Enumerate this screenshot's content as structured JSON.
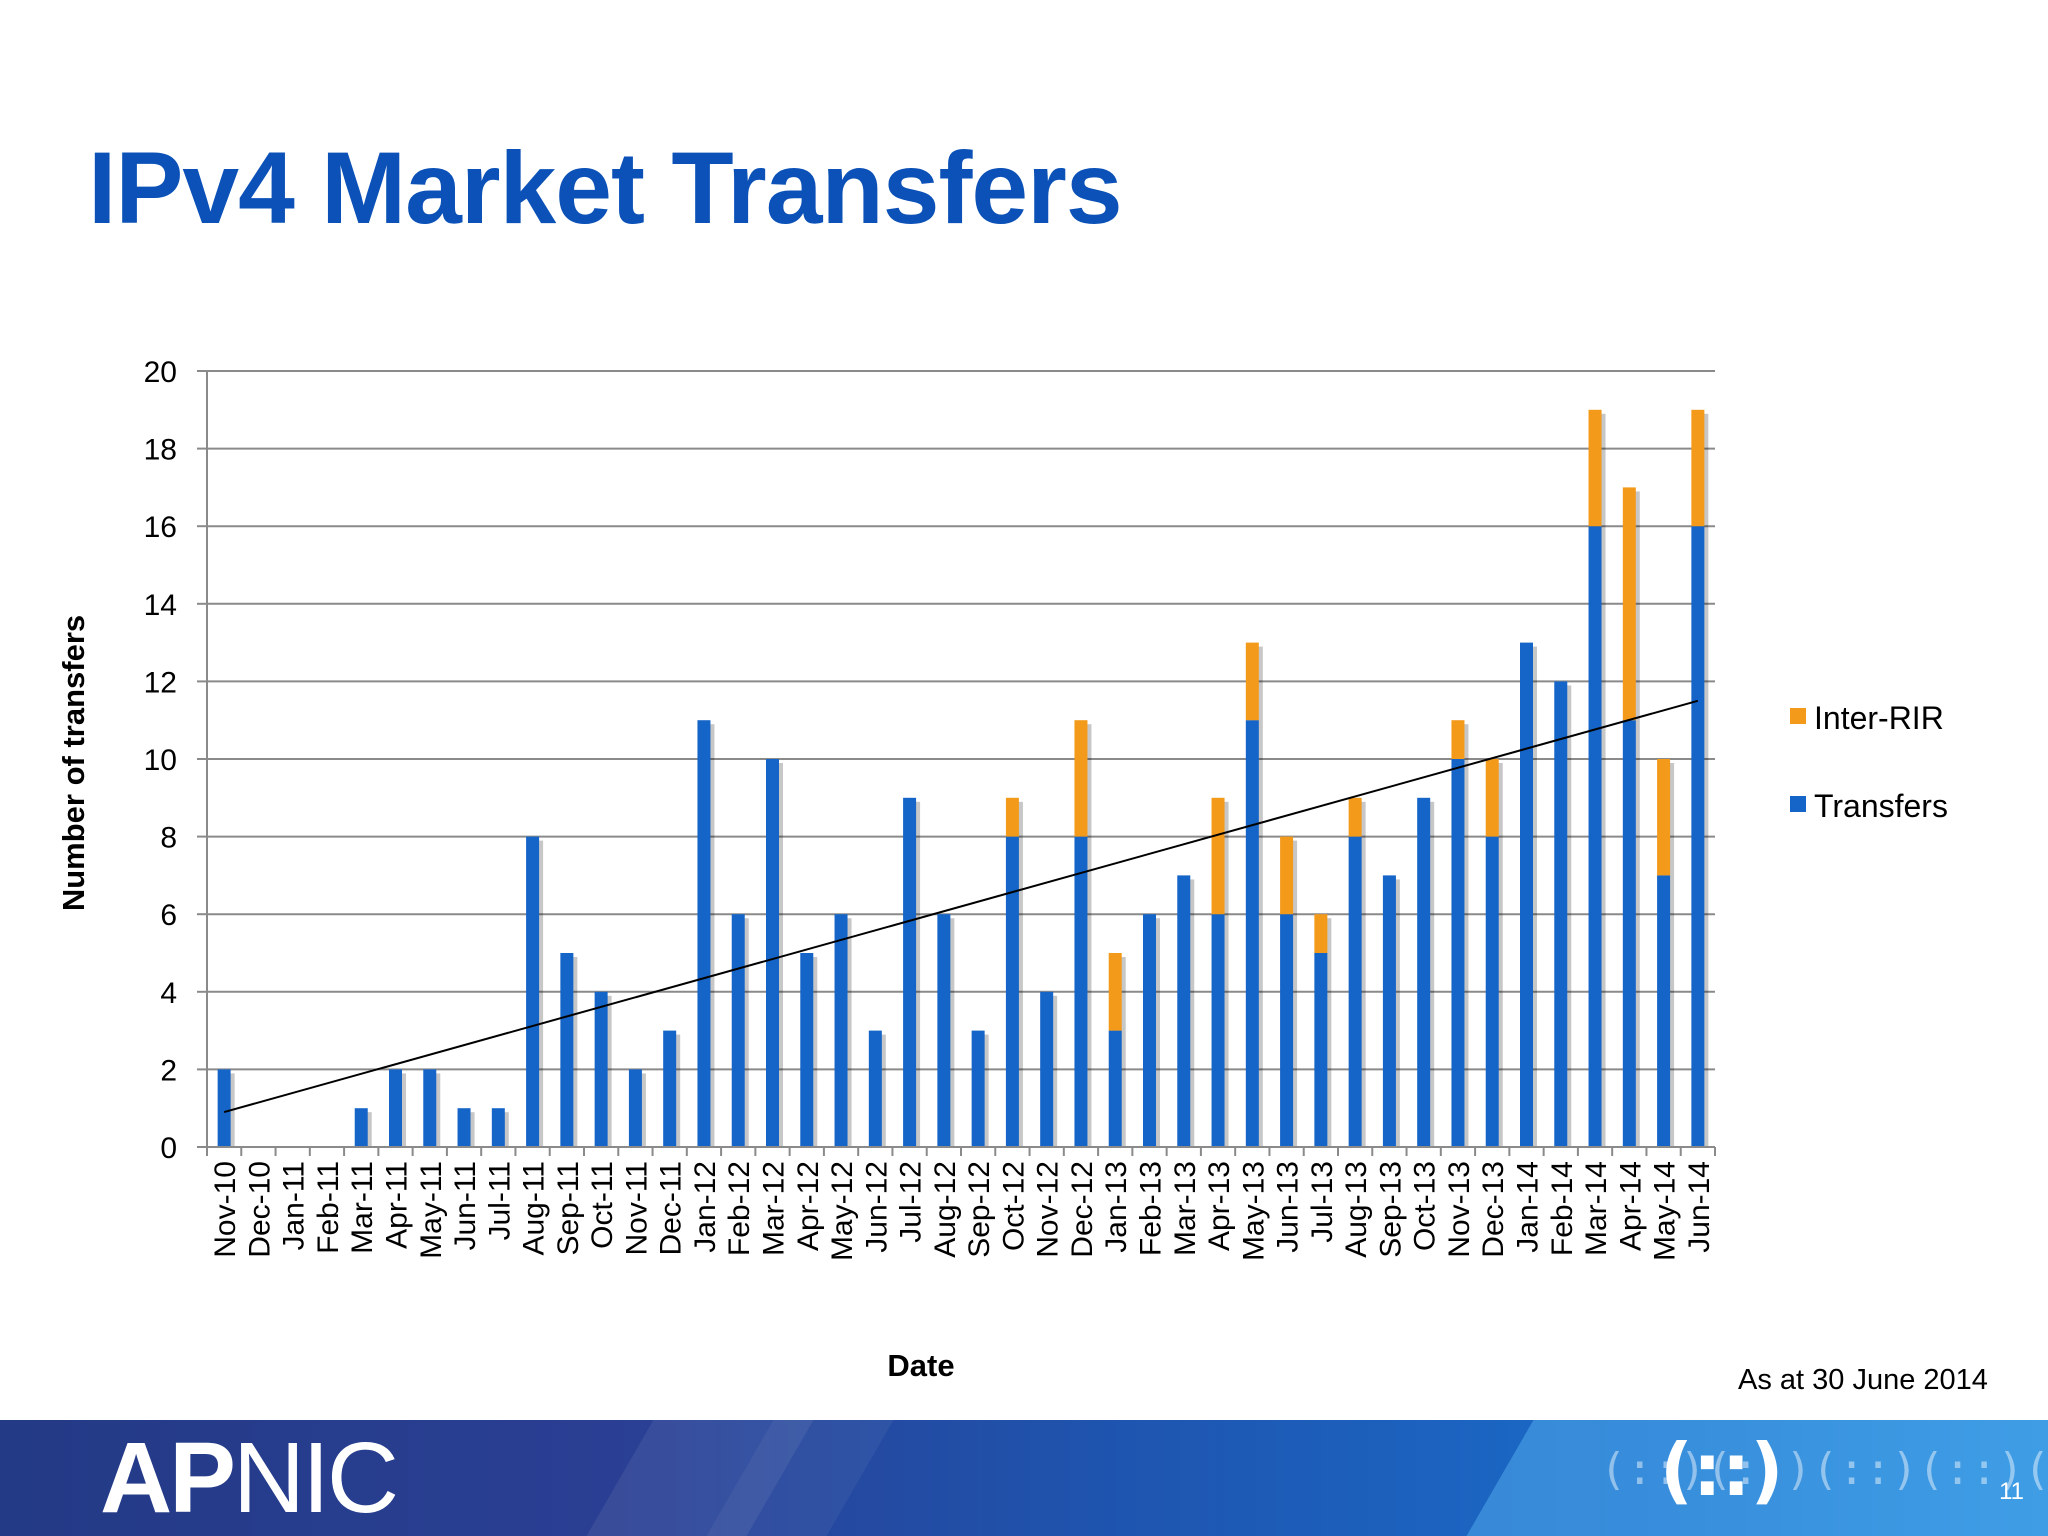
{
  "slide": {
    "title": "IPv4 Market Transfers",
    "note": "As at 30 June 2014",
    "page_number": "11",
    "logo_text_bold": "AP",
    "logo_text_thin": "NIC"
  },
  "colors": {
    "title": "#0b51b7",
    "transfers": "#1565c8",
    "inter_rir": "#f39a1b",
    "trendline": "#000000",
    "grid": "#8a8a8a"
  },
  "chart_data": {
    "type": "bar",
    "stacked": true,
    "xlabel": "Date",
    "ylabel": "Number of transfers",
    "ylim": [
      0,
      20
    ],
    "yticks": [
      0,
      2,
      4,
      6,
      8,
      10,
      12,
      14,
      16,
      18,
      20
    ],
    "grid": true,
    "legend_position": "right",
    "categories": [
      "Nov-10",
      "Dec-10",
      "Jan-11",
      "Feb-11",
      "Mar-11",
      "Apr-11",
      "May-11",
      "Jun-11",
      "Jul-11",
      "Aug-11",
      "Sep-11",
      "Oct-11",
      "Nov-11",
      "Dec-11",
      "Jan-12",
      "Feb-12",
      "Mar-12",
      "Apr-12",
      "May-12",
      "Jun-12",
      "Jul-12",
      "Aug-12",
      "Sep-12",
      "Oct-12",
      "Nov-12",
      "Dec-12",
      "Jan-13",
      "Feb-13",
      "Mar-13",
      "Apr-13",
      "May-13",
      "Jun-13",
      "Jul-13",
      "Aug-13",
      "Sep-13",
      "Oct-13",
      "Nov-13",
      "Dec-13",
      "Jan-14",
      "Feb-14",
      "Mar-14",
      "Apr-14",
      "May-14",
      "Jun-14"
    ],
    "series": [
      {
        "name": "Transfers",
        "values": [
          2,
          0,
          0,
          0,
          1,
          2,
          2,
          1,
          1,
          8,
          5,
          4,
          2,
          3,
          11,
          6,
          10,
          5,
          6,
          3,
          9,
          6,
          3,
          8,
          4,
          8,
          3,
          6,
          7,
          6,
          11,
          6,
          5,
          8,
          7,
          9,
          10,
          8,
          13,
          12,
          16,
          11,
          7,
          16
        ]
      },
      {
        "name": "Inter-RIR",
        "values": [
          0,
          0,
          0,
          0,
          0,
          0,
          0,
          0,
          0,
          0,
          0,
          0,
          0,
          0,
          0,
          0,
          0,
          0,
          0,
          0,
          0,
          0,
          0,
          1,
          0,
          3,
          2,
          0,
          0,
          3,
          2,
          2,
          1,
          1,
          0,
          0,
          1,
          2,
          0,
          0,
          3,
          6,
          3,
          3
        ]
      }
    ],
    "legend": [
      "Inter-RIR",
      "Transfers"
    ],
    "trendline": {
      "type": "linear",
      "start": {
        "x": "Nov-10",
        "y": 0.9
      },
      "end": {
        "x": "Jun-14",
        "y": 11.5
      }
    }
  }
}
